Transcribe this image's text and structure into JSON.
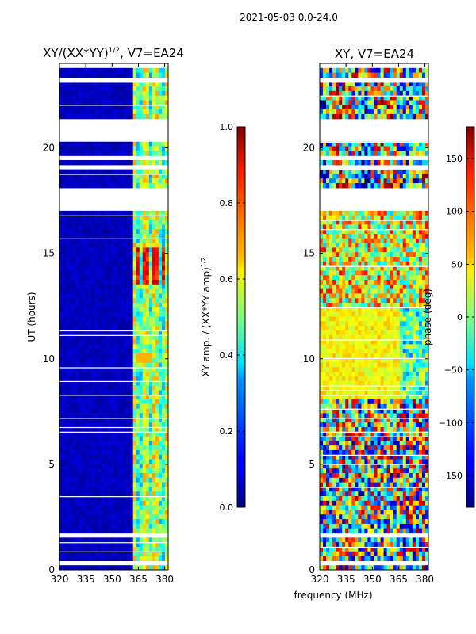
{
  "suptitle": "2021-05-03 0.0-24.0",
  "xlabel_shared": "frequency (MHz)",
  "chart_data": [
    {
      "type": "heatmap",
      "title_main": "XY/(XX*YY)",
      "title_sup": "1/2",
      "title_tail": ", V7=EA24",
      "ylabel": "UT (hours)",
      "xticks": [
        320,
        335,
        350,
        365,
        380
      ],
      "xtick_labels": [
        "320",
        "335",
        "350",
        "365",
        "380"
      ],
      "yticks": [
        0,
        5,
        10,
        15,
        20
      ],
      "ytick_labels": [
        "0",
        "5",
        "10",
        "15",
        "20"
      ],
      "xlim": [
        320,
        382
      ],
      "ylim": [
        0,
        24
      ],
      "colorbar": {
        "label_main": "XY amp. / (XX*YY amp)",
        "label_sup": "1/2",
        "range": [
          0.0,
          1.0
        ],
        "ticks": [
          0.0,
          0.2,
          0.4,
          0.6,
          0.8,
          1.0
        ],
        "tick_labels": [
          "0.0",
          "0.2",
          "0.4",
          "0.6",
          "0.8",
          "1.0"
        ]
      },
      "notes": "Amplitude mostly near 0 (dark blue) below 362 MHz; 362-381 MHz band shows values 0.3-0.7 with hot spots near 0.9 around 14-15 h; flagged (blank) UT rows near 17-18 h and 20-21 h"
    },
    {
      "type": "heatmap",
      "title": "XY, V7=EA24",
      "ylabel": "",
      "xticks": [
        320,
        335,
        350,
        365,
        380
      ],
      "xtick_labels": [
        "320",
        "335",
        "350",
        "365",
        "380"
      ],
      "yticks": [
        0,
        5,
        10,
        15,
        20
      ],
      "ytick_labels": [
        "0",
        "5",
        "10",
        "15",
        "20"
      ],
      "xlim": [
        320,
        382
      ],
      "ylim": [
        0,
        24
      ],
      "colorbar": {
        "label": "phase (deg)",
        "range": [
          -180,
          180
        ],
        "ticks": [
          -150,
          -100,
          -50,
          0,
          50,
          100,
          150
        ],
        "tick_labels": [
          "−150",
          "−100",
          "−50",
          "0",
          "50",
          "100",
          "150"
        ]
      },
      "notes": "Phase noisy across full band; phases near 0-60 deg dominate 8-12 h, large +/-180 deg swings elsewhere; same flagged rows as amplitude panel"
    }
  ]
}
